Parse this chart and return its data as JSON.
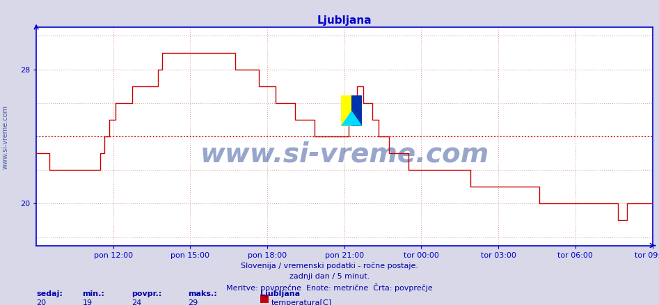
{
  "title": "Ljubljana",
  "title_color": "#0000cc",
  "title_fontsize": 11,
  "bg_color": "#d8d8e8",
  "plot_bg_color": "#ffffff",
  "line_color": "#cc0000",
  "line_width": 1.0,
  "avg_line_color": "#cc0000",
  "avg_line_style": "dotted",
  "avg_value": 24.0,
  "ylim_min": 17.5,
  "ylim_max": 30.5,
  "yticks": [
    20,
    28
  ],
  "grid_color": "#ddaaaa",
  "grid_style": "dotted",
  "axis_color": "#0000cc",
  "tick_color": "#0000cc",
  "tick_fontsize": 8,
  "watermark_text": "www.si-vreme.com",
  "watermark_color": "#1a3a8a",
  "watermark_fontsize": 28,
  "watermark_alpha": 0.45,
  "footer_line1": "Slovenija / vremenski podatki - ročne postaje.",
  "footer_line2": "zadnji dan / 5 minut.",
  "footer_line3": "Meritve: povprečne  Enote: metrične  Črta: povprečje",
  "footer_color": "#0000aa",
  "footer_fontsize": 8,
  "stats_labels": [
    "sedaj:",
    "min.:",
    "povpr.:",
    "maks.:"
  ],
  "stats_values": [
    "20",
    "19",
    "24",
    "29"
  ],
  "stats_color": "#0000aa",
  "stats_fontsize": 8,
  "legend_station": "Ljubljana",
  "legend_label": "temperatura[C]",
  "legend_color": "#cc0000",
  "sidebar_text": "www.si-vreme.com",
  "sidebar_color": "#1a3a8a",
  "sidebar_fontsize": 7,
  "x_tick_labels": [
    "pon 12:00",
    "pon 15:00",
    "pon 18:00",
    "pon 21:00",
    "tor 00:00",
    "tor 03:00",
    "tor 06:00",
    "tor 09:00"
  ],
  "num_points": 289,
  "temperature_data": [
    23,
    23,
    23,
    23,
    23,
    23,
    22,
    22,
    22,
    22,
    22,
    22,
    22,
    22,
    22,
    22,
    22,
    22,
    22,
    22,
    22,
    22,
    22,
    22,
    22,
    22,
    22,
    22,
    22,
    22,
    23,
    23,
    24,
    24,
    25,
    25,
    25,
    26,
    26,
    26,
    26,
    26,
    26,
    26,
    26,
    27,
    27,
    27,
    27,
    27,
    27,
    27,
    27,
    27,
    27,
    27,
    27,
    28,
    28,
    29,
    29,
    29,
    29,
    29,
    29,
    29,
    29,
    29,
    29,
    29,
    29,
    29,
    29,
    29,
    29,
    29,
    29,
    29,
    29,
    29,
    29,
    29,
    29,
    29,
    29,
    29,
    29,
    29,
    29,
    29,
    29,
    29,
    29,
    28,
    28,
    28,
    28,
    28,
    28,
    28,
    28,
    28,
    28,
    28,
    27,
    27,
    27,
    27,
    27,
    27,
    27,
    27,
    26,
    26,
    26,
    26,
    26,
    26,
    26,
    26,
    26,
    25,
    25,
    25,
    25,
    25,
    25,
    25,
    25,
    25,
    24,
    24,
    24,
    24,
    24,
    24,
    24,
    24,
    24,
    24,
    24,
    24,
    24,
    24,
    24,
    24,
    25,
    25,
    26,
    26,
    27,
    27,
    27,
    26,
    26,
    26,
    26,
    25,
    25,
    25,
    24,
    24,
    24,
    24,
    24,
    23,
    23,
    23,
    23,
    23,
    23,
    23,
    23,
    23,
    22,
    22,
    22,
    22,
    22,
    22,
    22,
    22,
    22,
    22,
    22,
    22,
    22,
    22,
    22,
    22,
    22,
    22,
    22,
    22,
    22,
    22,
    22,
    22,
    22,
    22,
    22,
    22,
    22,
    21,
    21,
    21,
    21,
    21,
    21,
    21,
    21,
    21,
    21,
    21,
    21,
    21,
    21,
    21,
    21,
    21,
    21,
    21,
    21,
    21,
    21,
    21,
    21,
    21,
    21,
    21,
    21,
    21,
    21,
    21,
    21,
    20,
    20,
    20,
    20,
    20,
    20,
    20,
    20,
    20,
    20,
    20,
    20,
    20,
    20,
    20,
    20,
    20,
    20,
    20,
    20,
    20,
    20,
    20,
    20,
    20,
    20,
    20,
    20,
    20,
    20,
    20,
    20,
    20,
    20,
    20,
    20,
    20,
    19,
    19,
    19,
    19,
    20,
    20,
    20,
    20,
    20,
    20,
    20,
    20,
    20,
    20,
    20,
    20,
    20
  ]
}
